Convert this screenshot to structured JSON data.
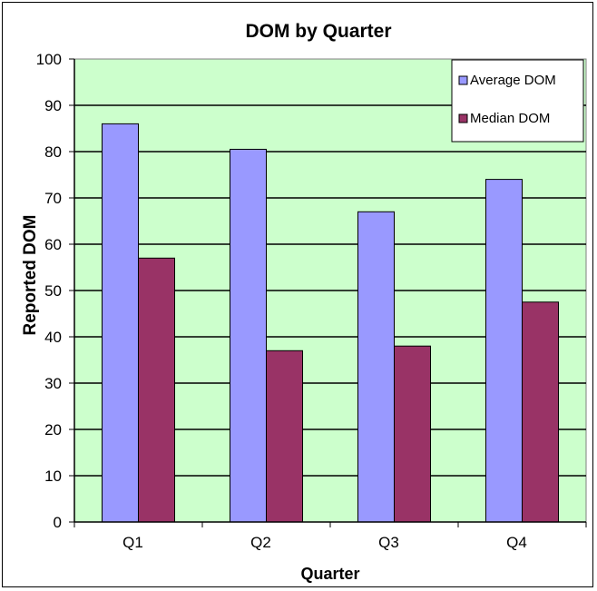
{
  "chart_data": {
    "type": "bar",
    "title": "DOM by Quarter",
    "xlabel": "Quarter",
    "ylabel": "Reported DOM",
    "categories": [
      "Q1",
      "Q2",
      "Q3",
      "Q4"
    ],
    "series": [
      {
        "name": "Average DOM",
        "values": [
          86,
          80.5,
          67,
          74
        ],
        "color": "#9999ff"
      },
      {
        "name": "Median DOM",
        "values": [
          57,
          37,
          38,
          47.5
        ],
        "color": "#993366"
      }
    ],
    "ylim": [
      0,
      100
    ],
    "yticks": [
      0,
      10,
      20,
      30,
      40,
      50,
      60,
      70,
      80,
      90,
      100
    ],
    "grid": true,
    "plot_background": "#ccffcc",
    "legend_position": "top-right"
  }
}
